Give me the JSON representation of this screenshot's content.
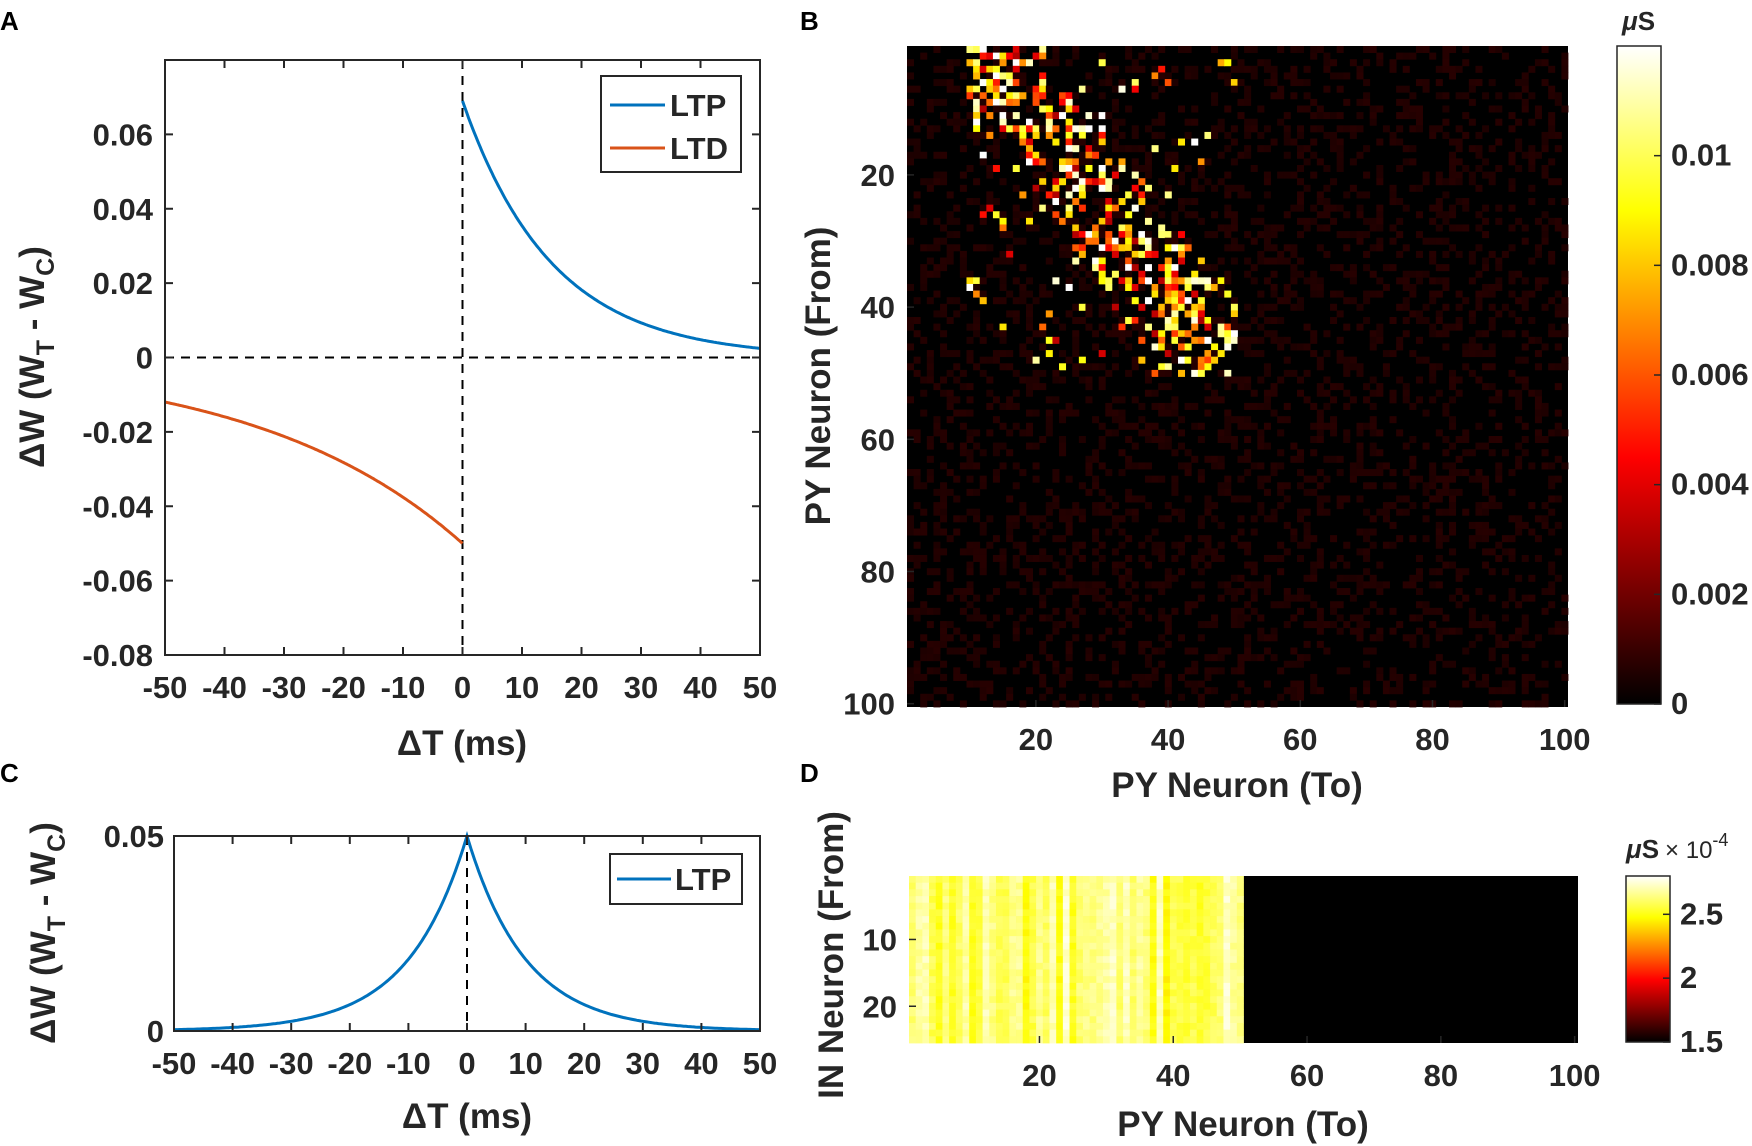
{
  "panels": {
    "A": {
      "letter": "A",
      "chart_data": {
        "type": "line",
        "title": "",
        "xlabel": "ΔT (ms)",
        "ylabel_main": "ΔW (W",
        "ylabel_sub1": "T",
        "ylabel_mid": " - W",
        "ylabel_sub2": "C",
        "ylabel_end": ")",
        "xlim": [
          -50,
          50
        ],
        "ylim": [
          -0.08,
          0.08
        ],
        "xticks": [
          -50,
          -40,
          -30,
          -20,
          -10,
          0,
          10,
          20,
          30,
          40,
          50
        ],
        "yticks": [
          -0.08,
          -0.06,
          -0.04,
          -0.02,
          0,
          0.02,
          0.04,
          0.06
        ],
        "ytick_labels": [
          "-0.08",
          "-0.06",
          "-0.04",
          "-0.02",
          "0",
          "0.02",
          "0.04",
          "0.06"
        ],
        "legend_position": "top-right",
        "series": [
          {
            "name": "LTP",
            "color": "#0072BD",
            "amplitude": 0.069,
            "tau": 15,
            "domain": [
              0,
              50
            ],
            "sign": 1
          },
          {
            "name": "LTD",
            "color": "#D95319",
            "amplitude": 0.05,
            "tau": 35,
            "domain": [
              -50,
              0
            ],
            "sign": -1
          }
        ]
      }
    },
    "B": {
      "letter": "B",
      "chart_data": {
        "type": "heatmap",
        "xlabel": "PY Neuron (To)",
        "ylabel": "PY Neuron (From)",
        "rows": 100,
        "cols": 100,
        "xticks": [
          20,
          40,
          60,
          80,
          100
        ],
        "yticks": [
          20,
          40,
          60,
          80,
          100
        ],
        "colormap": "hot",
        "clim": [
          0,
          0.012
        ],
        "colorbar_unit_mu": "μ",
        "colorbar_unit": "S",
        "colorbar_ticks": [
          0,
          0.002,
          0.004,
          0.006,
          0.008,
          0.01
        ],
        "colorbar_tick_labels": [
          "0",
          "0.002",
          "0.004",
          "0.006",
          "0.008",
          "0.01"
        ],
        "note": "strong weights concentrated in first ~50 rows and columns 10-50; rest near zero"
      }
    },
    "C": {
      "letter": "C",
      "chart_data": {
        "type": "line",
        "xlabel": "ΔT (ms)",
        "ylabel_main": "ΔW (W",
        "ylabel_sub1": "T",
        "ylabel_mid": " - W",
        "ylabel_sub2": "C",
        "ylabel_end": ")",
        "xlim": [
          -50,
          50
        ],
        "ylim": [
          0,
          0.05
        ],
        "xticks": [
          -50,
          -40,
          -30,
          -20,
          -10,
          0,
          10,
          20,
          30,
          40,
          50
        ],
        "yticks": [
          0,
          0.05
        ],
        "ytick_labels": [
          "0",
          "0.05"
        ],
        "legend_position": "top-right",
        "series": [
          {
            "name": "LTP",
            "color": "#0072BD",
            "amplitude": 0.05,
            "tau": 10,
            "domain": [
              -50,
              50
            ],
            "symmetric": true
          }
        ]
      }
    },
    "D": {
      "letter": "D",
      "chart_data": {
        "type": "heatmap",
        "xlabel": "PY Neuron (To)",
        "ylabel": "IN Neuron (From)",
        "rows": 25,
        "cols": 100,
        "xticks": [
          20,
          40,
          60,
          80,
          100
        ],
        "yticks": [
          10,
          20
        ],
        "colormap": "hot",
        "clim": [
          1.5,
          2.8
        ],
        "colorbar_unit_mu": "μ",
        "colorbar_unit": "S",
        "colorbar_scale_base": "× 10",
        "colorbar_scale_exp": "-4",
        "colorbar_ticks": [
          1.5,
          2,
          2.5
        ],
        "colorbar_tick_labels": [
          "1.5",
          "2",
          "2.5"
        ],
        "note": "columns 1-50 high (yellow, ~2.4-2.8e-4), columns 51-100 at minimum (black)"
      }
    }
  }
}
